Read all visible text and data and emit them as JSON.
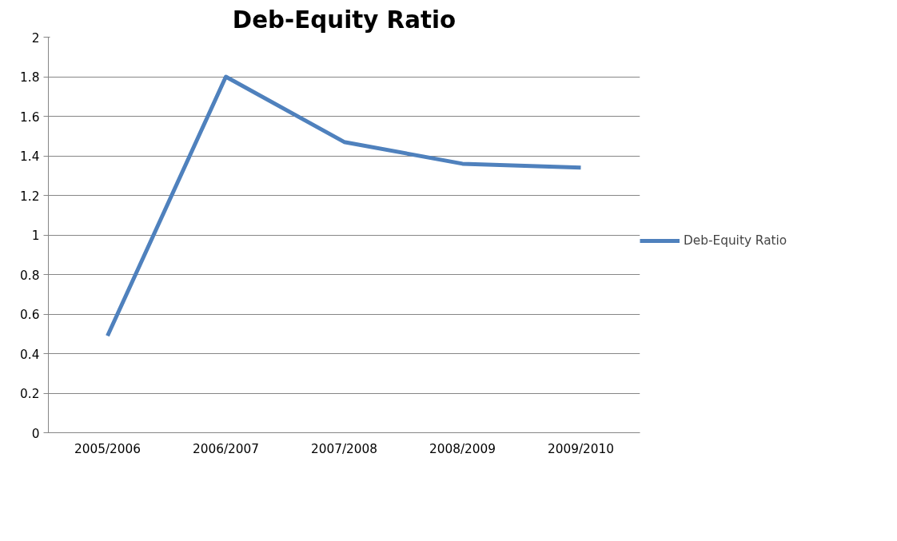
{
  "chart_data": {
    "type": "line",
    "title": "Deb-Equity Ratio",
    "categories": [
      "2005/2006",
      "2006/2007",
      "2007/2008",
      "2008/2009",
      "2009/2010"
    ],
    "series": [
      {
        "name": "Deb-Equity Ratio",
        "color": "#4f81bd",
        "values": [
          0.49,
          1.8,
          1.47,
          1.36,
          1.34
        ]
      }
    ],
    "ylim": [
      0,
      2
    ],
    "yticks": [
      0,
      0.2,
      0.4,
      0.6,
      0.8,
      1,
      1.2,
      1.4,
      1.6,
      1.8,
      2
    ],
    "grid": "y",
    "legend": "right",
    "marker": "none",
    "line_style": "solid"
  }
}
